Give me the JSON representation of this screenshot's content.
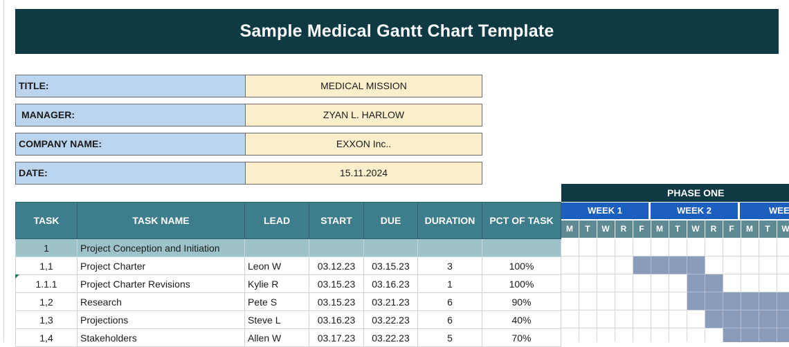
{
  "title": "Sample Medical Gantt Chart Template",
  "info": [
    {
      "label": "TITLE:",
      "value": "MEDICAL MISSION"
    },
    {
      "label": "MANAGER:",
      "value": "ZYAN L. HARLOW"
    },
    {
      "label": "COMPANY NAME:",
      "value": "EXXON Inc.."
    },
    {
      "label": "DATE:",
      "value": "15.11.2024"
    }
  ],
  "columns": [
    "TASK",
    "TASK NAME",
    "LEAD",
    "START",
    "DUE",
    "DURATION",
    "PCT OF TASK"
  ],
  "phase_row": {
    "task": "1",
    "name": "Project Conception and Initiation"
  },
  "rows": [
    {
      "task": "1,1",
      "name": "Project Charter",
      "lead": "Leon W",
      "start": "03.12.23",
      "due": "03.15.23",
      "duration": "3",
      "pct": "100%"
    },
    {
      "task": "1.1.1",
      "name": "Project Charter Revisions",
      "lead": "Kylie R",
      "start": "03.15.23",
      "due": "03.16.23",
      "duration": "1",
      "pct": "100%"
    },
    {
      "task": "1,2",
      "name": "Research",
      "lead": "Pete S",
      "start": "03.15.23",
      "due": "03.21.23",
      "duration": "6",
      "pct": "90%"
    },
    {
      "task": "1,3",
      "name": "Projections",
      "lead": "Steve L",
      "start": "03.16.23",
      "due": "03.22.23",
      "duration": "6",
      "pct": "40%"
    },
    {
      "task": "1,4",
      "name": "Stakeholders",
      "lead": "Allen W",
      "start": "03.17.23",
      "due": "03.22.23",
      "duration": "5",
      "pct": "70%"
    }
  ],
  "gantt": {
    "phase_label": "PHASE ONE",
    "weeks": [
      "WEEK 1",
      "WEEK 2",
      "WEE"
    ],
    "days": [
      "M",
      "T",
      "W",
      "R",
      "F",
      "M",
      "T",
      "W",
      "R",
      "F",
      "M",
      "T",
      "W"
    ],
    "fill_color": "#8b9cbb",
    "filled": [
      [
        4,
        5,
        6,
        7
      ],
      [
        7,
        8
      ],
      [
        7,
        8,
        9,
        10,
        11,
        12
      ],
      [
        8,
        9,
        10,
        11,
        12
      ],
      [
        9,
        10,
        11,
        12
      ]
    ]
  }
}
